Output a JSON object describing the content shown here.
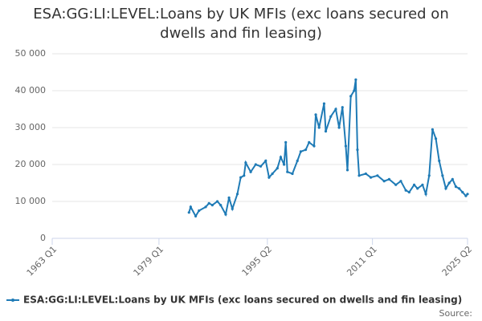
{
  "chart_data": {
    "type": "line",
    "title": "ESA:GG:LI:LEVEL:Loans by UK MFIs (exc loans secured on dwells and fin leasing)",
    "source": "Source:",
    "legend": "bottom",
    "grid": true,
    "xlim": [
      1963,
      2025.25
    ],
    "xticks": [
      {
        "value": 1963,
        "label": "1963 Q1"
      },
      {
        "value": 1979,
        "label": "1979 Q1"
      },
      {
        "value": 1995.25,
        "label": "1995 Q2"
      },
      {
        "value": 2011,
        "label": "2011 Q1"
      },
      {
        "value": 2025.25,
        "label": "2025 Q2"
      }
    ],
    "ylim": [
      0,
      50000
    ],
    "yticks": [
      0,
      {
        "value": 10000,
        "label": "10 000"
      },
      {
        "value": 20000,
        "label": "20 000"
      },
      {
        "value": 30000,
        "label": "30 000"
      },
      {
        "value": 40000,
        "label": "40 000"
      },
      {
        "value": 50000,
        "label": "50 000"
      }
    ],
    "x": [
      1983.5,
      1983.75,
      1984.5,
      1985,
      1986,
      1986.5,
      1987,
      1987.75,
      1988.25,
      1989,
      1989.5,
      1990,
      1990.75,
      1991.25,
      1991.75,
      1992,
      1992.75,
      1993.5,
      1994.25,
      1995,
      1995.5,
      1996,
      1996.75,
      1997.25,
      1997.75,
      1998,
      1998.25,
      1999,
      1999.75,
      2000.25,
      2001,
      2001.5,
      2002.25,
      2002.5,
      2003,
      2003.75,
      2004,
      2004.75,
      2005.5,
      2006,
      2006.5,
      2007,
      2007.25,
      2007.75,
      2008.25,
      2008.5,
      2008.75,
      2009,
      2010,
      2010.75,
      2011.75,
      2012.75,
      2013.5,
      2014.5,
      2015.25,
      2016,
      2016.5,
      2017.25,
      2017.75,
      2018.5,
      2019,
      2019.5,
      2020,
      2020.5,
      2021,
      2021.5,
      2022,
      2022.5,
      2023,
      2023.5,
      2024,
      2024.5,
      2025,
      2025.25
    ],
    "series": [
      {
        "name": "ESA:GG:LI:LEVEL:Loans by UK MFIs (exc loans secured on dwells and fin leasing)",
        "color": "#1f7bb6",
        "values": [
          7000,
          8500,
          6000,
          7500,
          8500,
          9500,
          9000,
          10000,
          9000,
          6500,
          11000,
          8000,
          12000,
          16500,
          17000,
          20500,
          18000,
          20000,
          19500,
          21000,
          16500,
          17500,
          19000,
          22000,
          20000,
          26000,
          18000,
          17500,
          21000,
          23500,
          24000,
          26000,
          25000,
          33500,
          30000,
          36500,
          29000,
          33000,
          35000,
          30000,
          35500,
          25000,
          18500,
          38500,
          40000,
          43000,
          24000,
          17000,
          17500,
          16500,
          17000,
          15500,
          16000,
          14500,
          15500,
          13000,
          12500,
          14500,
          13500,
          14500,
          12000,
          17000,
          29500,
          27000,
          21000,
          17000,
          13500,
          15000,
          16000,
          14000,
          13500,
          12500,
          11500,
          12000
        ]
      }
    ]
  }
}
